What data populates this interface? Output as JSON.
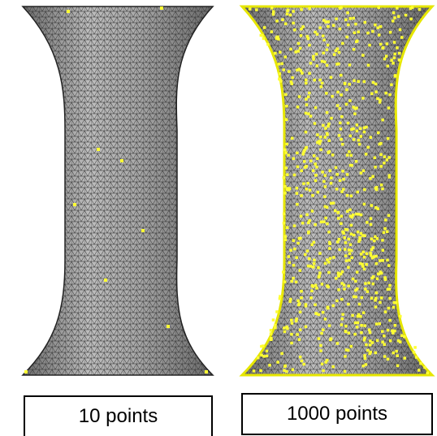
{
  "panels": [
    {
      "label": "10 points"
    },
    {
      "label": "1000 points"
    }
  ]
}
